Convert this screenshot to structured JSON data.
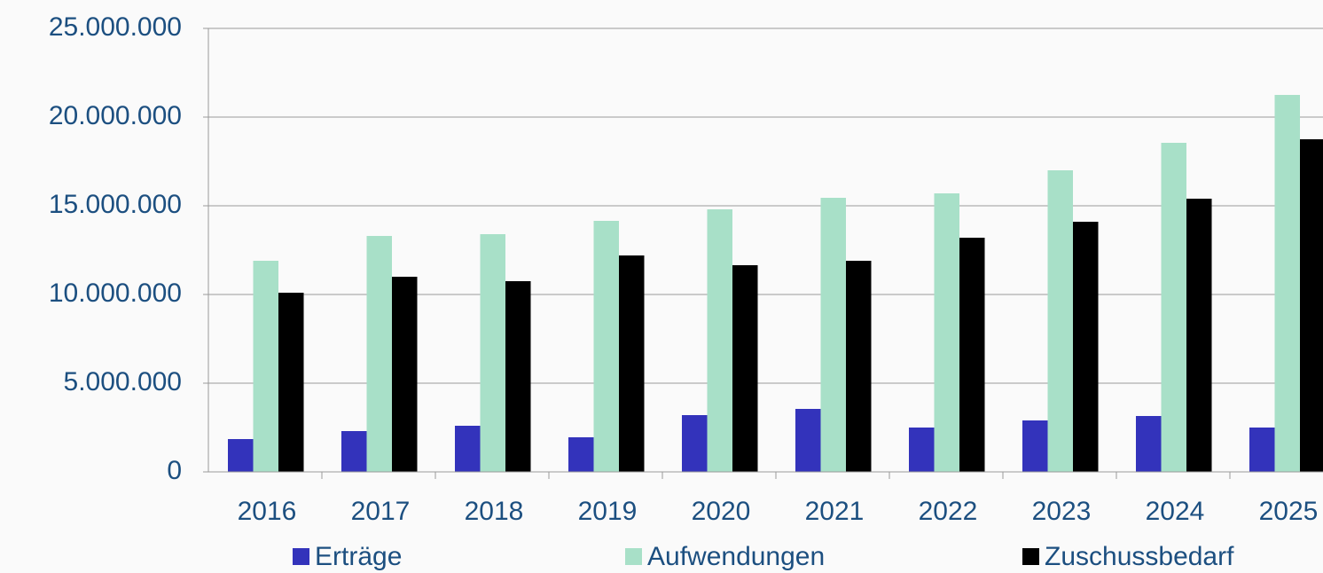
{
  "chart_data": {
    "type": "bar",
    "categories": [
      "2016",
      "2017",
      "2018",
      "2019",
      "2020",
      "2021",
      "2022",
      "2023",
      "2024",
      "2025"
    ],
    "series": [
      {
        "name": "Erträge",
        "color": "#3333bb",
        "values": [
          1850000,
          2300000,
          2600000,
          1950000,
          3200000,
          3550000,
          2500000,
          2900000,
          3150000,
          2500000
        ]
      },
      {
        "name": "Aufwendungen",
        "color": "#a8e0c8",
        "values": [
          11900000,
          13300000,
          13400000,
          14150000,
          14800000,
          15450000,
          15700000,
          17000000,
          18550000,
          21250000
        ]
      },
      {
        "name": "Zuschussbedarf",
        "color": "#000000",
        "values": [
          10100000,
          11000000,
          10750000,
          12200000,
          11650000,
          11900000,
          13200000,
          14100000,
          15400000,
          18750000
        ]
      }
    ],
    "ylim": [
      0,
      25000000
    ],
    "yticks": [
      0,
      {
        "value": 5000000,
        "label": "5.000.000"
      },
      {
        "value": 10000000,
        "label": "10.000.000"
      },
      {
        "value": 15000000,
        "label": "15.000.000"
      },
      {
        "value": 20000000,
        "label": "20.000.000"
      },
      {
        "value": 25000000,
        "label": "25.000.000"
      }
    ],
    "grid": true,
    "legend": "bottom"
  }
}
